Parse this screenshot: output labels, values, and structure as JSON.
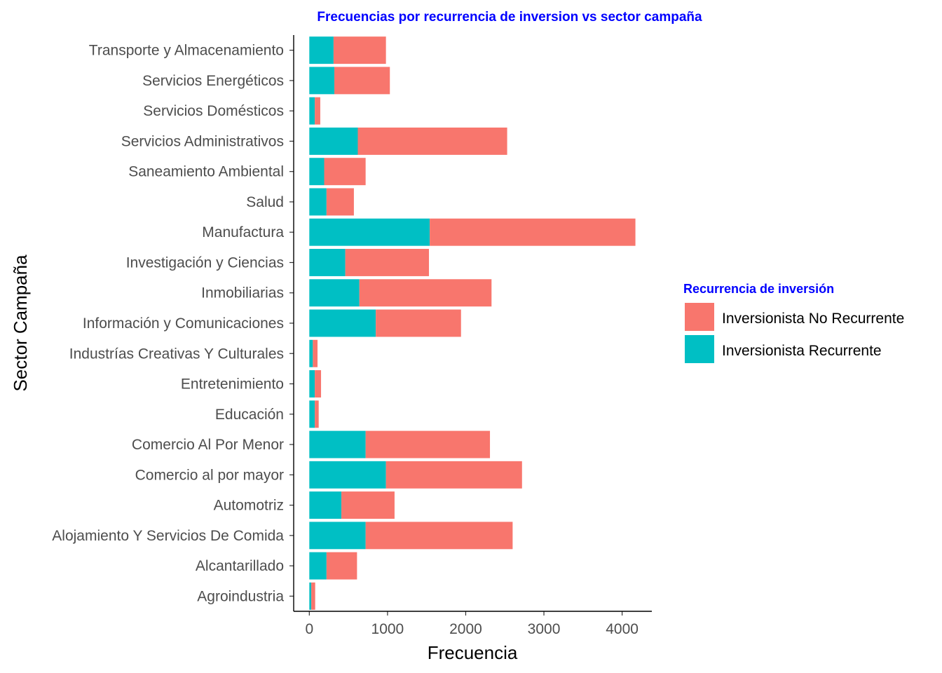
{
  "chart_data": {
    "type": "bar",
    "orientation": "horizontal",
    "stacked": true,
    "title": "Frecuencias por recurrencia de inversion vs sector campaña",
    "title_color": "#0000FF",
    "xlabel": "Frecuencia",
    "ylabel": "Sector Campaña",
    "xlim": [
      -200,
      4380
    ],
    "xticks": [
      0,
      1000,
      2000,
      3000,
      4000
    ],
    "grid": false,
    "legend_placement": "right",
    "legend_title": "Recurrencia de inversión",
    "legend_title_color": "#0000FF",
    "categories": [
      "Agroindustria",
      "Alcantarillado",
      "Alojamiento Y Servicios De Comida",
      "Automotriz",
      "Comercio al por mayor",
      "Comercio Al Por Menor",
      "Educación",
      "Entretenimiento",
      "Industrías Creativas Y Culturales",
      "Información y Comunicaciones",
      "Inmobiliarias",
      "Investigación y Ciencias",
      "Manufactura",
      "Salud",
      "Saneamiento Ambiental",
      "Servicios Administrativos",
      "Servicios Domésticos",
      "Servicios Energéticos",
      "Transporte y Almacenamiento"
    ],
    "series": [
      {
        "name": "Inversionista Recurrente",
        "color": "#00BFC4",
        "values": [
          25,
          220,
          720,
          410,
          980,
          720,
          70,
          70,
          45,
          850,
          640,
          460,
          1540,
          220,
          190,
          620,
          70,
          320,
          310
        ]
      },
      {
        "name": "Inversionista No Recurrente",
        "color": "#F8766D",
        "values": [
          50,
          390,
          1880,
          680,
          1740,
          1590,
          50,
          80,
          60,
          1090,
          1690,
          1070,
          2630,
          350,
          530,
          1910,
          70,
          710,
          670
        ]
      }
    ]
  }
}
